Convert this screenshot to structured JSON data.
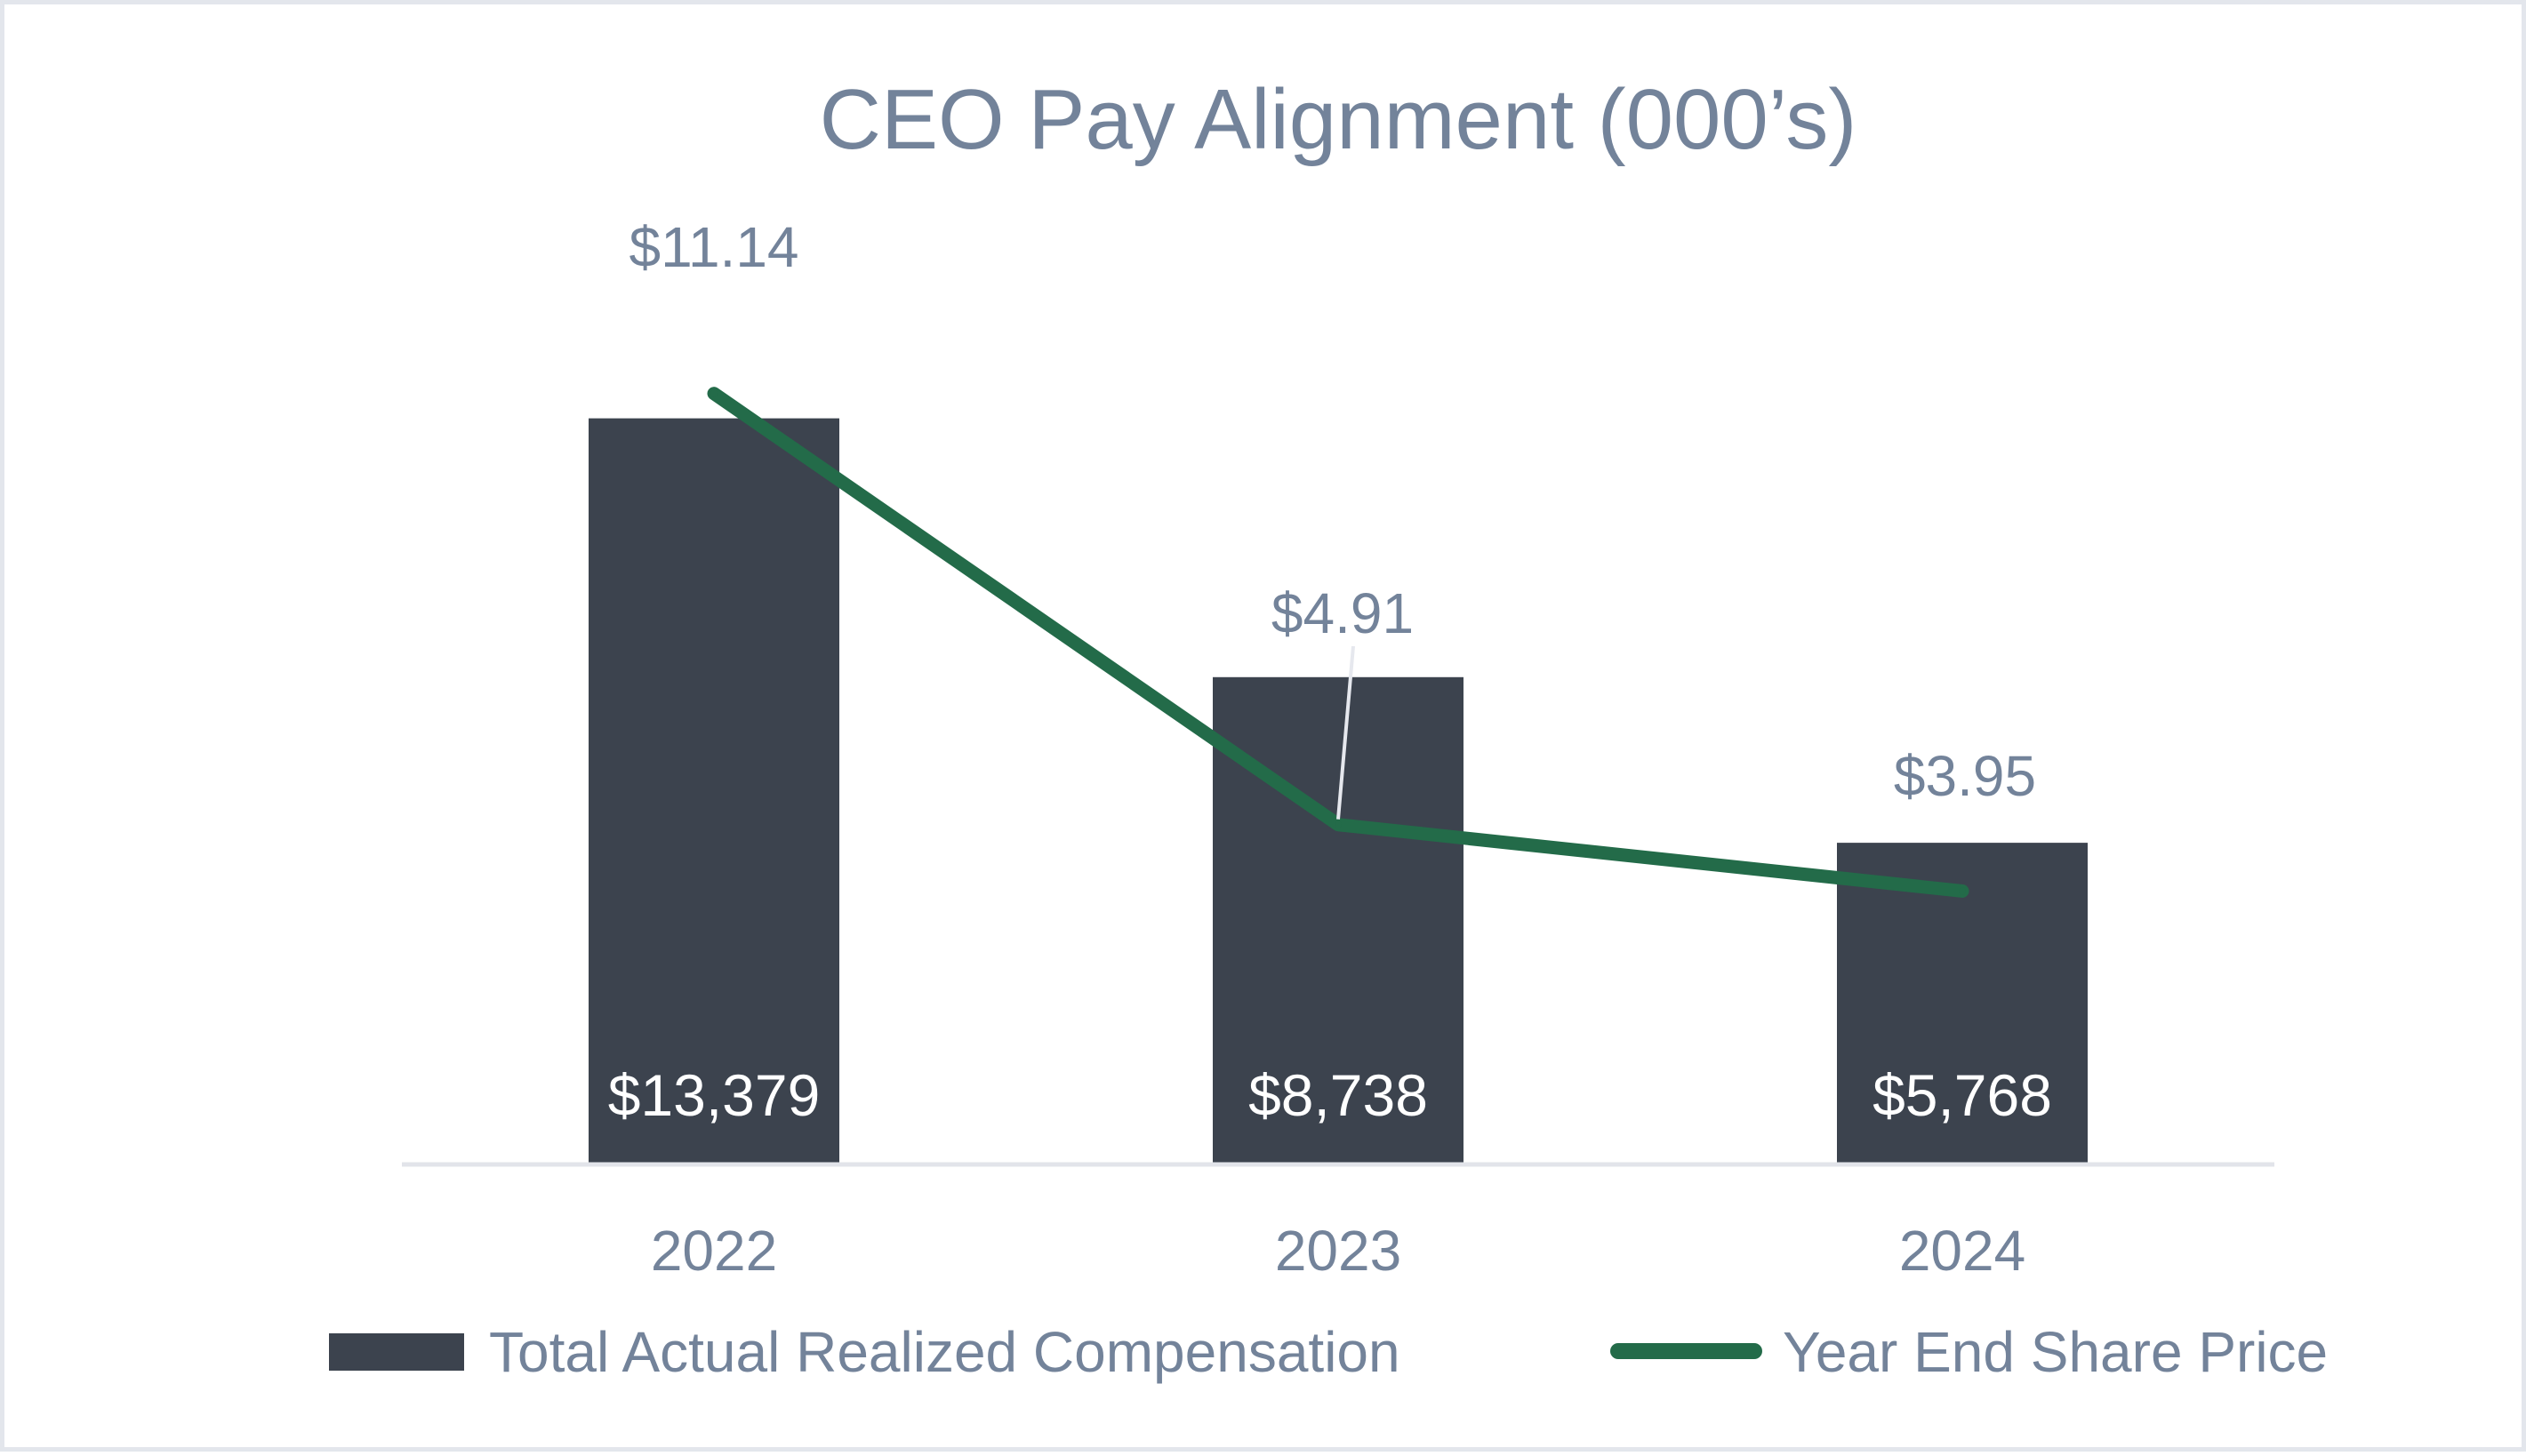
{
  "chart_data": {
    "type": "bar",
    "title": "CEO Pay Alignment (000’s)",
    "categories": [
      "2022",
      "2023",
      "2024"
    ],
    "series": [
      {
        "name": "Total Actual Realized Compensation",
        "type": "bar",
        "values": [
          13379,
          8738,
          5768
        ],
        "labels": [
          "$13,379",
          "$8,738",
          "$5,768"
        ],
        "color": "#3c434e"
      },
      {
        "name": "Year End Share Price",
        "type": "line",
        "values": [
          11.14,
          4.91,
          3.95
        ],
        "labels": [
          "$11.14",
          "$4.91",
          "$3.95"
        ],
        "color": "#236b49"
      }
    ],
    "ylim": [
      0,
      16000
    ],
    "y2lim": [
      0,
      14.5
    ],
    "grid": false,
    "legend": "bottom",
    "colors": {
      "axis": "#e2e4ea",
      "text": "#73839a"
    }
  }
}
